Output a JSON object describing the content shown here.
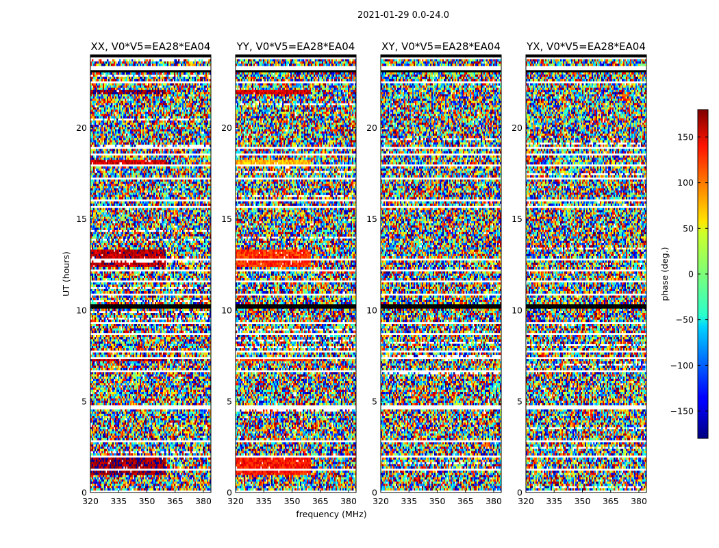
{
  "chart_data": {
    "type": "heatmap",
    "title": "2021-01-29 0.0-24.0",
    "panels": [
      {
        "title": "XX, V0*V5=EA28*EA04",
        "pol": "XX"
      },
      {
        "title": "YY, V0*V5=EA28*EA04",
        "pol": "YY"
      },
      {
        "title": "XY, V0*V5=EA28*EA04",
        "pol": "XY"
      },
      {
        "title": "YX, V0*V5=EA28*EA04",
        "pol": "YX"
      }
    ],
    "xlabel": "frequency (MHz)",
    "ylabel": "UT (hours)",
    "xlim": [
      320,
      384
    ],
    "ylim": [
      0,
      24
    ],
    "xticks": [
      320,
      335,
      350,
      365,
      380
    ],
    "yticks": [
      0,
      5,
      10,
      15,
      20
    ],
    "colorbar": {
      "label": "phase (deg.)",
      "range": [
        -180,
        180
      ],
      "ticks": [
        150,
        100,
        50,
        0,
        -50,
        -100,
        -150
      ],
      "colormap": "jet"
    },
    "z_quantity": "visibility phase (deg.) per channel and integration; noise-dominated with flagged (blank) time ranges",
    "blank_time_bands_hours": [
      [
        0.02,
        0.08
      ],
      [
        0.9,
        0.97
      ],
      [
        1.2,
        1.3
      ],
      [
        1.95,
        2.02
      ],
      [
        2.8,
        2.88
      ],
      [
        3.3,
        3.4
      ],
      [
        4.6,
        4.75
      ],
      [
        5.35,
        5.42
      ],
      [
        6.6,
        6.7
      ],
      [
        7.3,
        7.45
      ],
      [
        7.7,
        7.8
      ],
      [
        8.7,
        8.8
      ],
      [
        9.2,
        9.3
      ],
      [
        10.85,
        10.95
      ],
      [
        11.5,
        11.6
      ],
      [
        12.1,
        12.2
      ],
      [
        12.75,
        12.85
      ],
      [
        14.0,
        14.1
      ],
      [
        15.6,
        15.7
      ],
      [
        16.0,
        16.1
      ],
      [
        17.2,
        17.3
      ],
      [
        17.9,
        18.0
      ],
      [
        18.5,
        18.6
      ],
      [
        18.9,
        19.0
      ],
      [
        22.4,
        22.55
      ],
      [
        23.2,
        23.45
      ],
      [
        23.75,
        23.85
      ]
    ],
    "black_time_bands_hours": [
      [
        10.05,
        10.3
      ],
      [
        17.35,
        17.45
      ],
      [
        22.15,
        22.25
      ],
      [
        23.05,
        23.15
      ],
      [
        23.9,
        24.0
      ]
    ],
    "coherent_phase_bands": [
      {
        "pol": "XX",
        "t": [
          0.95,
          1.9
        ],
        "phase_deg": 170
      },
      {
        "pol": "XX",
        "t": [
          12.4,
          13.3
        ],
        "phase_deg": 160
      },
      {
        "pol": "XX",
        "t": [
          7.15,
          7.45
        ],
        "phase_deg": 165
      },
      {
        "pol": "XX",
        "t": [
          18.0,
          18.25
        ],
        "phase_deg": 150
      },
      {
        "pol": "XX",
        "t": [
          21.9,
          22.05
        ],
        "phase_deg": 175
      },
      {
        "pol": "YY",
        "t": [
          0.95,
          1.9
        ],
        "phase_deg": 130
      },
      {
        "pol": "YY",
        "t": [
          12.4,
          13.3
        ],
        "phase_deg": 120
      },
      {
        "pol": "YY",
        "t": [
          7.15,
          7.45
        ],
        "phase_deg": 110
      },
      {
        "pol": "YY",
        "t": [
          18.0,
          18.25
        ],
        "phase_deg": 70
      },
      {
        "pol": "YY",
        "t": [
          21.9,
          22.05
        ],
        "phase_deg": 150
      }
    ]
  }
}
